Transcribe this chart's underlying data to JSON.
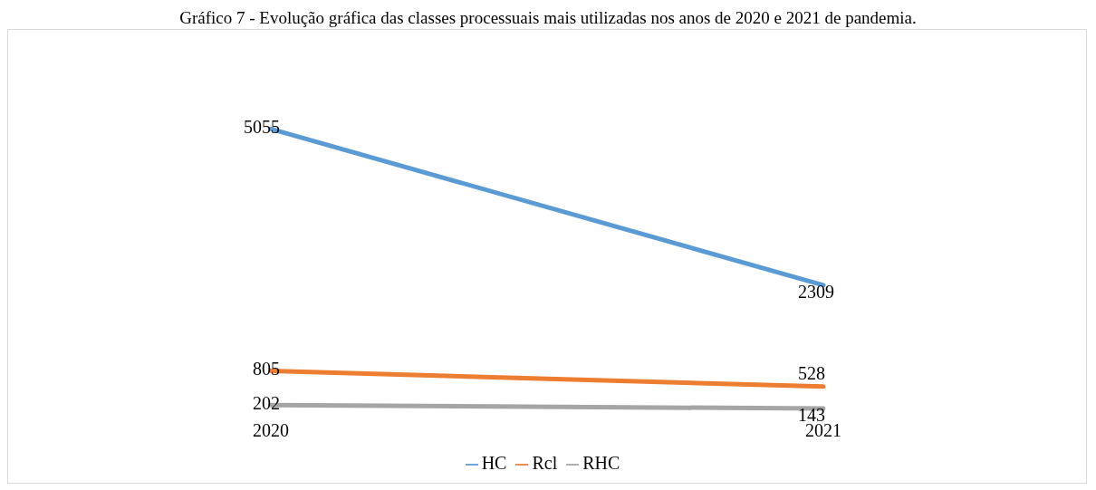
{
  "chart_data": {
    "type": "line",
    "title": "Gráfico 7 - Evolução gráfica das classes processuais mais utilizadas nos anos de 2020 e 2021 de pandemia.",
    "categories": [
      "2020",
      "2021"
    ],
    "series": [
      {
        "name": "HC",
        "color": "#5b9bd5",
        "values": [
          5055,
          2309
        ]
      },
      {
        "name": "Rcl",
        "color": "#ed7d31",
        "values": [
          805,
          528
        ]
      },
      {
        "name": "RHC",
        "color": "#a5a5a5",
        "values": [
          202,
          143
        ]
      }
    ],
    "data_labels": true,
    "legend": "bottom",
    "marker": "none",
    "line_style": "solid",
    "grid": false,
    "tick_labels": "x"
  }
}
